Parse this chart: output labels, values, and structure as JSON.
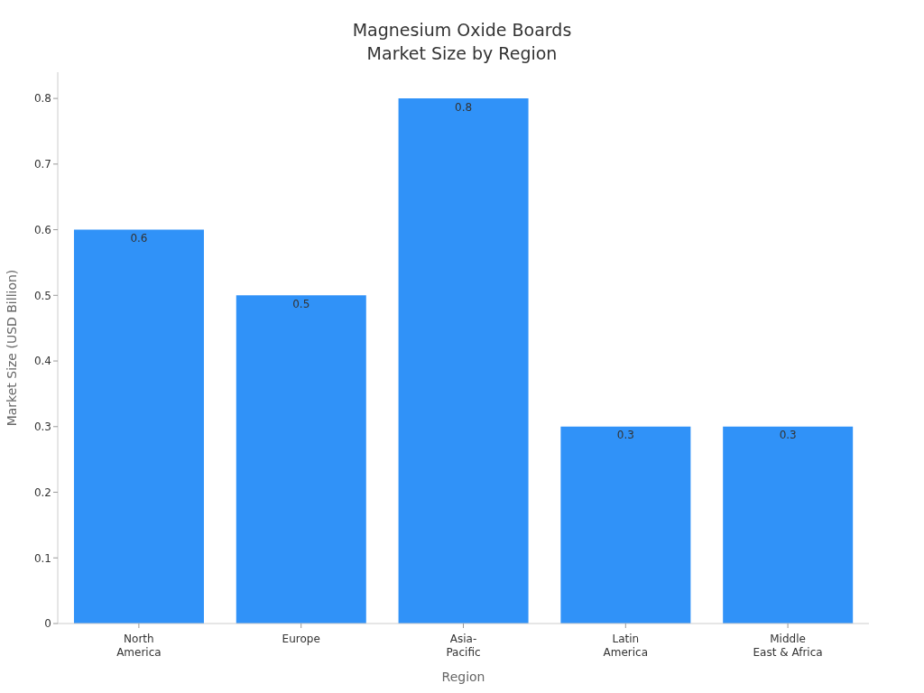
{
  "chart_data": {
    "type": "bar",
    "title": "Magnesium Oxide Boards\nMarket Size by Region",
    "xlabel": "Region",
    "ylabel": "Market Size (USD Billion)",
    "categories": [
      "North\nAmerica",
      "Europe",
      "Asia-\nPacific",
      "Latin\nAmerica",
      "Middle\nEast & Africa"
    ],
    "values": [
      0.6,
      0.5,
      0.8,
      0.3,
      0.3
    ],
    "color": "#3092f8",
    "ylim": [
      0,
      0.84
    ],
    "yticks": [
      0,
      0.1,
      0.2,
      0.3,
      0.4,
      0.5,
      0.6,
      0.7,
      0.8
    ],
    "data_labels": true
  }
}
